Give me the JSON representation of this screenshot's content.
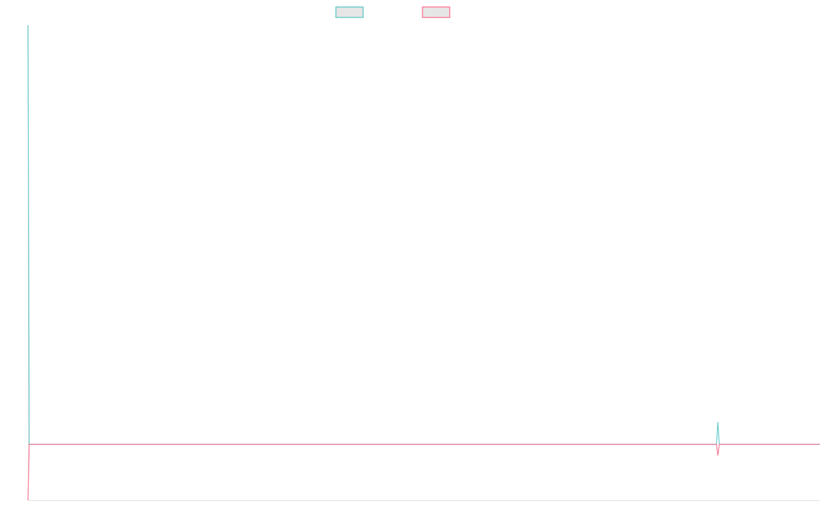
{
  "chart_data": {
    "type": "line",
    "title": "",
    "xlabel": "",
    "ylabel": "",
    "xlim": [
      0,
      567
    ],
    "ylim": [
      -80,
      600
    ],
    "grid": false,
    "legend": {
      "placement": "top",
      "entries": [
        "",
        ""
      ]
    },
    "series": [
      {
        "color": "#4bc0c0",
        "x": [
          0,
          1,
          493,
          494,
          495,
          567
        ],
        "y": [
          600,
          0,
          0,
          32,
          0,
          0
        ]
      },
      {
        "color": "#ff6384",
        "x": [
          0,
          1,
          493,
          494,
          495,
          567
        ],
        "y": [
          -80,
          0,
          0,
          -16,
          0,
          0
        ]
      }
    ]
  }
}
